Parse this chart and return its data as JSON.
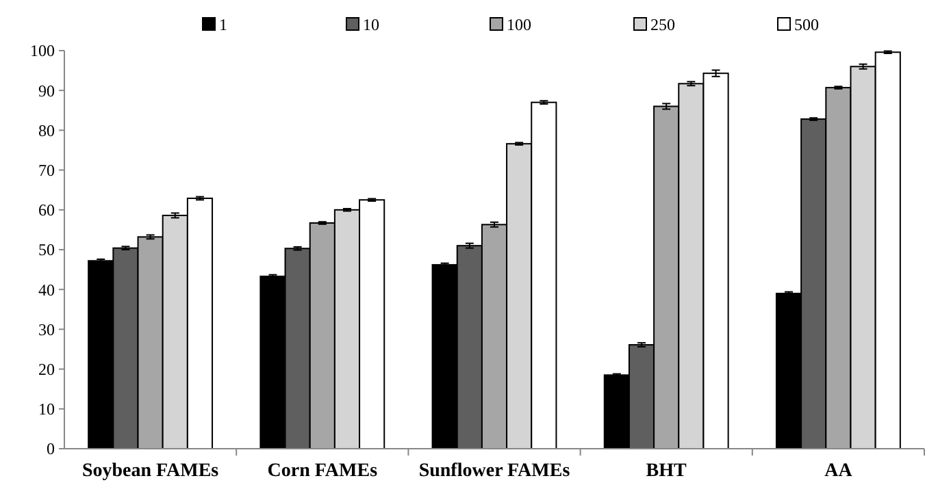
{
  "chart_data": {
    "type": "bar",
    "categories": [
      "Soybean FAMEs",
      "Corn FAMEs",
      "Sunflower FAMEs",
      "BHT",
      "AA"
    ],
    "series": [
      {
        "name": "1",
        "color": "#000000",
        "values": [
          47.2,
          43.3,
          46.2,
          18.5,
          39.0
        ],
        "errors": [
          0.4,
          0.4,
          0.4,
          0.3,
          0.4
        ]
      },
      {
        "name": "10",
        "color": "#5f5f5f",
        "values": [
          50.4,
          50.3,
          51.0,
          26.1,
          82.8
        ],
        "errors": [
          0.4,
          0.4,
          0.6,
          0.5,
          0.3
        ]
      },
      {
        "name": "100",
        "color": "#a6a6a6",
        "values": [
          53.2,
          56.7,
          56.3,
          86.0,
          90.7
        ],
        "errors": [
          0.5,
          0.3,
          0.6,
          0.7,
          0.3
        ]
      },
      {
        "name": "250",
        "color": "#d4d4d4",
        "values": [
          58.6,
          60.0,
          76.6,
          91.7,
          96.0
        ],
        "errors": [
          0.6,
          0.3,
          0.3,
          0.5,
          0.6
        ]
      },
      {
        "name": "500",
        "color": "#ffffff",
        "values": [
          62.9,
          62.5,
          87.0,
          94.3,
          99.6
        ],
        "errors": [
          0.4,
          0.3,
          0.4,
          0.8,
          0.3
        ]
      }
    ],
    "ylim": [
      0,
      100
    ],
    "yticks": [
      0,
      10,
      20,
      30,
      40,
      50,
      60,
      70,
      80,
      90,
      100
    ],
    "grid": false,
    "legend": "top"
  }
}
